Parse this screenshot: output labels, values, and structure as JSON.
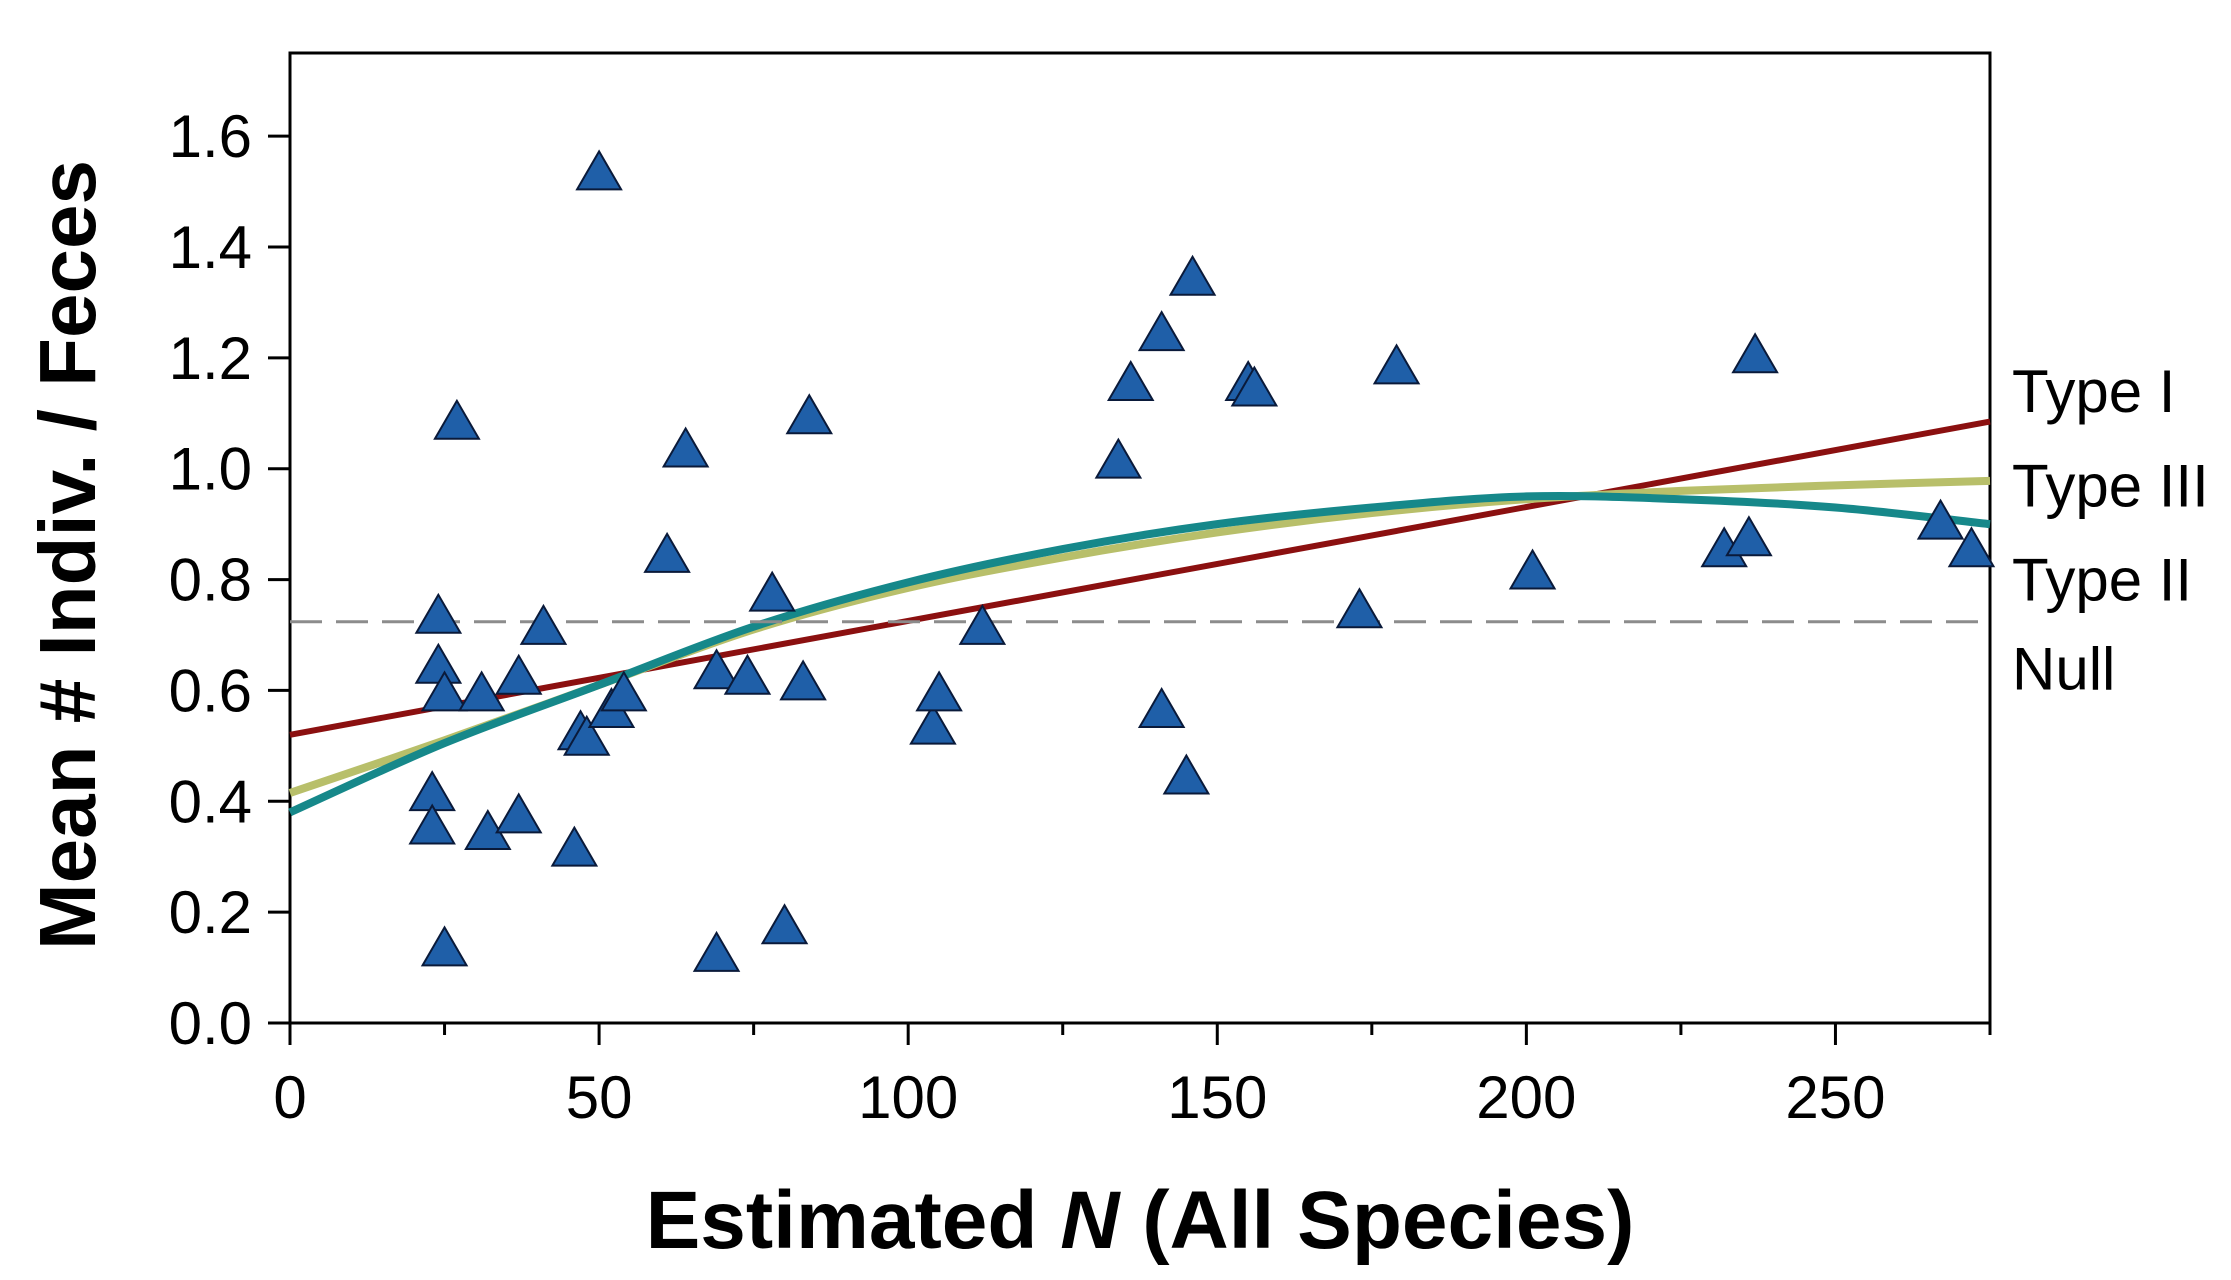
{
  "chart_data": {
    "type": "scatter",
    "title": "",
    "xlabel_prefix": "Estimated ",
    "xlabel_italic": "N",
    "xlabel_suffix": " (All Species)",
    "ylabel": "Mean # Indiv. / Feces",
    "xlim": [
      0,
      275
    ],
    "ylim": [
      0,
      1.75
    ],
    "x_ticks": [
      0,
      50,
      100,
      150,
      200,
      250
    ],
    "y_ticks": [
      0.0,
      0.2,
      0.4,
      0.6,
      0.8,
      1.0,
      1.2,
      1.4,
      1.6
    ],
    "y_tick_labels": [
      "0.0",
      "0.2",
      "0.4",
      "0.6",
      "0.8",
      "1.0",
      "1.2",
      "1.4",
      "1.6"
    ],
    "x_minor_step": 25,
    "grid": false,
    "legend": "none",
    "marker": {
      "shape": "triangle",
      "color": "#1f5fa8"
    },
    "points": [
      {
        "x": 50,
        "y": 1.53
      },
      {
        "x": 27,
        "y": 1.08
      },
      {
        "x": 64,
        "y": 1.03
      },
      {
        "x": 84,
        "y": 1.09
      },
      {
        "x": 24,
        "y": 0.73
      },
      {
        "x": 24,
        "y": 0.64
      },
      {
        "x": 25,
        "y": 0.59
      },
      {
        "x": 31,
        "y": 0.59
      },
      {
        "x": 37,
        "y": 0.62
      },
      {
        "x": 41,
        "y": 0.71
      },
      {
        "x": 47,
        "y": 0.52
      },
      {
        "x": 48,
        "y": 0.51
      },
      {
        "x": 52,
        "y": 0.56
      },
      {
        "x": 54,
        "y": 0.59
      },
      {
        "x": 61,
        "y": 0.84
      },
      {
        "x": 69,
        "y": 0.63
      },
      {
        "x": 74,
        "y": 0.62
      },
      {
        "x": 78,
        "y": 0.77
      },
      {
        "x": 83,
        "y": 0.61
      },
      {
        "x": 23,
        "y": 0.41
      },
      {
        "x": 23,
        "y": 0.35
      },
      {
        "x": 32,
        "y": 0.34
      },
      {
        "x": 37,
        "y": 0.37
      },
      {
        "x": 46,
        "y": 0.31
      },
      {
        "x": 25,
        "y": 0.13
      },
      {
        "x": 69,
        "y": 0.12
      },
      {
        "x": 80,
        "y": 0.17
      },
      {
        "x": 104,
        "y": 0.53
      },
      {
        "x": 105,
        "y": 0.59
      },
      {
        "x": 112,
        "y": 0.71
      },
      {
        "x": 134,
        "y": 1.01
      },
      {
        "x": 136,
        "y": 1.15
      },
      {
        "x": 141,
        "y": 1.24
      },
      {
        "x": 146,
        "y": 1.34
      },
      {
        "x": 155,
        "y": 1.15
      },
      {
        "x": 156,
        "y": 1.14
      },
      {
        "x": 141,
        "y": 0.56
      },
      {
        "x": 145,
        "y": 0.44
      },
      {
        "x": 173,
        "y": 0.74
      },
      {
        "x": 179,
        "y": 1.18
      },
      {
        "x": 201,
        "y": 0.81
      },
      {
        "x": 232,
        "y": 0.85
      },
      {
        "x": 236,
        "y": 0.87
      },
      {
        "x": 237,
        "y": 1.2
      },
      {
        "x": 267,
        "y": 0.9
      },
      {
        "x": 272,
        "y": 0.85
      }
    ],
    "series": [
      {
        "name": "Type I",
        "kind": "line",
        "color": "#8b1010",
        "x": [
          0,
          275
        ],
        "y": [
          0.52,
          1.085
        ]
      },
      {
        "name": "Type III",
        "kind": "curve",
        "color": "#b8bf6a",
        "x": [
          0,
          25,
          50,
          75,
          100,
          125,
          150,
          175,
          200,
          225,
          250,
          275
        ],
        "y": [
          0.415,
          0.51,
          0.61,
          0.71,
          0.785,
          0.84,
          0.885,
          0.92,
          0.945,
          0.96,
          0.97,
          0.978
        ]
      },
      {
        "name": "Type II",
        "kind": "curve",
        "color": "#16888a",
        "x": [
          0,
          25,
          50,
          75,
          100,
          125,
          150,
          175,
          200,
          225,
          250,
          275
        ],
        "y": [
          0.38,
          0.505,
          0.61,
          0.715,
          0.795,
          0.855,
          0.9,
          0.93,
          0.95,
          0.945,
          0.93,
          0.9
        ]
      },
      {
        "name": "Null",
        "kind": "dashed",
        "color": "#8c8c8c",
        "x": [
          0,
          275
        ],
        "y": [
          0.724,
          0.724
        ]
      }
    ],
    "curve_labels": [
      {
        "text": "Type I",
        "y": 1.14
      },
      {
        "text": "Type III",
        "y": 0.97
      },
      {
        "text": "Type II",
        "y": 0.8
      },
      {
        "text": "Null",
        "y": 0.64
      }
    ]
  }
}
